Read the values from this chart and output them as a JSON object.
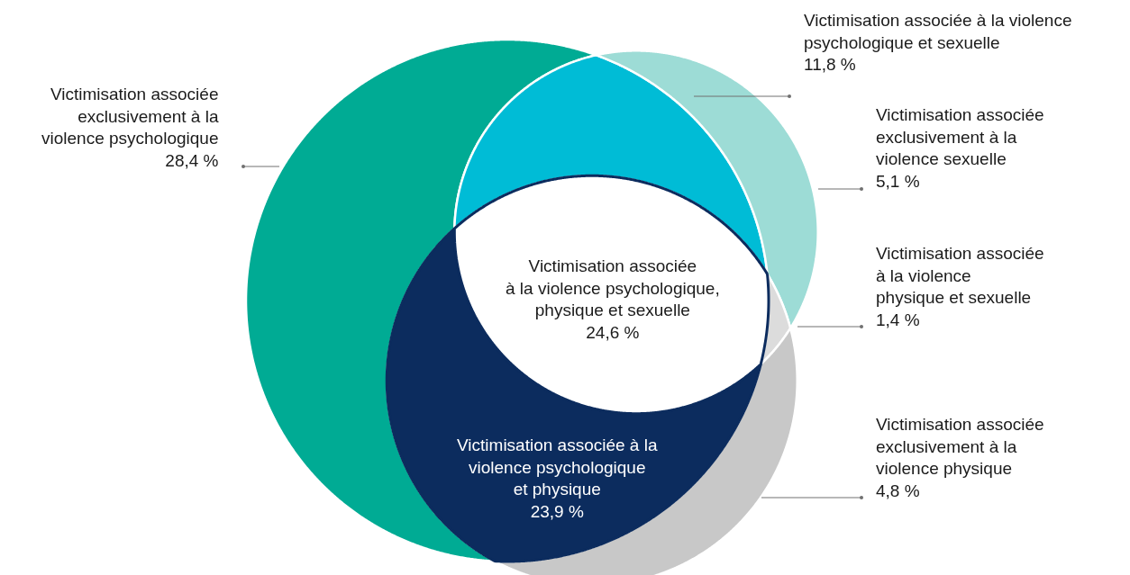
{
  "chart_data": {
    "type": "other",
    "categories": [
      "Victimisation associée\nexclusivement à la\nviolence psychologique",
      "Victimisation associée à la violence\npsychologique et sexuelle",
      "Victimisation associée\nexclusivement à la\nviolence sexuelle",
      "Victimisation associée\nà la violence\nphysique et sexuelle",
      "Victimisation associée\nexclusivement à la\nviolence physique",
      "Victimisation associée à la\nviolence psychologique\net physique",
      "Victimisation associée\nà la violence psychologique,\nphysique et sexuelle"
    ],
    "values": [
      28.4,
      11.8,
      5.1,
      1.4,
      4.8,
      23.9,
      24.6
    ],
    "value_labels": [
      "28,4 %",
      "11,8 %",
      "5,1 %",
      "1,4 %",
      "4,8 %",
      "23,9 %",
      "24,6 %"
    ],
    "colors": [
      "#00ab94",
      "#00bcd6",
      "#9ddcd6",
      "#dcdcdc",
      "#c8c8c8",
      "#0c2c5e",
      "#ffffff"
    ]
  }
}
